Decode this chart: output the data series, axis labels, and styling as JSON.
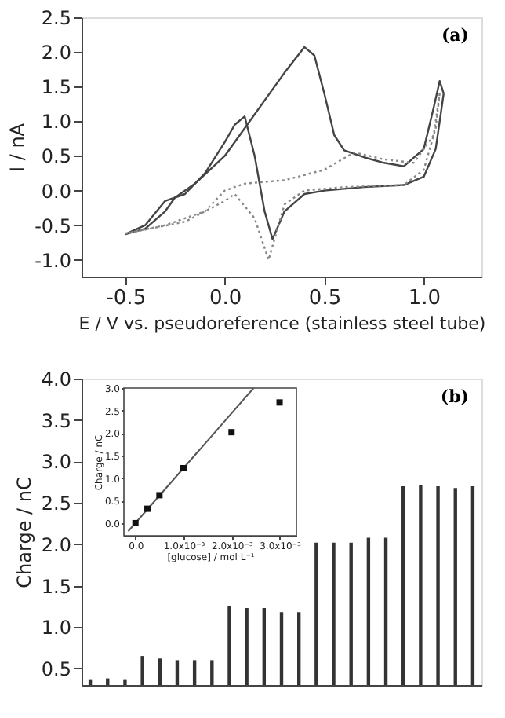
{
  "chart_data": [
    {
      "type": "line",
      "xlabel": "E / V vs. pseudoreference (stainless steel tube)",
      "ylabel": "I / nA",
      "annotations": [
        "(a)"
      ],
      "xlim": [
        -0.72,
        1.29
      ],
      "ylim": [
        -1.24,
        2.5
      ],
      "xticks": [
        -0.5,
        {
          "value": 0,
          "label": "0.0"
        },
        0.5,
        {
          "value": 1,
          "label": "1.0"
        }
      ],
      "yticks": [
        {
          "value": -1,
          "label": "-1.0"
        },
        -0.5,
        {
          "value": 0,
          "label": "0.0"
        },
        0.5,
        {
          "value": 1,
          "label": "1.0"
        },
        1.5,
        {
          "value": 2,
          "label": "2.0"
        },
        2.5
      ],
      "series": [
        {
          "color": "#444444",
          "line_style": "solid",
          "x": [
            -0.5,
            -0.4,
            -0.3,
            -0.25,
            -0.15,
            0,
            0.1,
            0.2,
            0.3,
            0.4,
            0.45,
            0.5,
            0.55,
            0.6,
            0.7,
            0.8,
            0.9,
            1.0,
            1.05,
            1.08,
            1.1
          ],
          "values": [
            -0.63,
            -0.55,
            -0.3,
            -0.1,
            0.1,
            0.5,
            0.9,
            1.3,
            1.7,
            2.07,
            1.95,
            1.4,
            0.8,
            0.58,
            0.48,
            0.4,
            0.35,
            0.6,
            1.2,
            1.58,
            1.4
          ]
        },
        {
          "color": "#444444",
          "line_style": "solid",
          "x": [
            1.1,
            1.06,
            1.0,
            0.9,
            0.7,
            0.5,
            0.4,
            0.3,
            0.24,
            0.2,
            0.15,
            0.1,
            0.05,
            0,
            -0.1,
            -0.2,
            -0.3,
            -0.4,
            -0.5
          ],
          "values": [
            1.4,
            0.6,
            0.2,
            0.08,
            0.05,
            0,
            -0.05,
            -0.3,
            -0.7,
            -0.3,
            0.5,
            1.07,
            0.95,
            0.7,
            0.25,
            -0.05,
            -0.15,
            -0.5,
            -0.63
          ]
        },
        {
          "color": "#888888",
          "line_style": "dotted",
          "x": [
            -0.5,
            -0.3,
            -0.1,
            0,
            0.1,
            0.3,
            0.5,
            0.65,
            0.8,
            0.95,
            1.05,
            1.08
          ],
          "values": [
            -0.62,
            -0.5,
            -0.3,
            0,
            0.1,
            0.15,
            0.3,
            0.55,
            0.45,
            0.4,
            0.8,
            1.4
          ]
        },
        {
          "color": "#888888",
          "line_style": "dotted",
          "x": [
            1.08,
            1.06,
            1.0,
            0.9,
            0.6,
            0.4,
            0.3,
            0.22,
            0.15,
            0.05,
            0,
            -0.2,
            -0.5
          ],
          "values": [
            1.4,
            0.9,
            0.3,
            0.08,
            0.05,
            0,
            -0.2,
            -1.0,
            -0.4,
            -0.05,
            -0.15,
            -0.45,
            -0.62
          ]
        }
      ]
    },
    {
      "type": "bar",
      "ylabel": "Charge / nC",
      "annotations": [
        "(b)"
      ],
      "tick_labels": "y",
      "color": "#333333",
      "ylim": [
        0.3,
        4.0
      ],
      "yticks": [
        0.5,
        {
          "value": 1,
          "label": "1.0"
        },
        1.5,
        {
          "value": 2,
          "label": "2.0"
        },
        2.5,
        {
          "value": 3,
          "label": "3.0"
        },
        3.5,
        {
          "value": 4,
          "label": "4.0"
        }
      ],
      "categories": [
        null,
        null,
        null,
        null,
        null,
        null,
        null,
        null,
        null,
        null,
        null,
        null,
        null,
        null,
        null,
        null,
        null,
        null,
        null,
        null,
        null,
        null,
        null
      ],
      "values": [
        0.37,
        0.38,
        0.37,
        0.65,
        0.62,
        0.6,
        0.6,
        0.6,
        1.25,
        1.23,
        1.23,
        1.18,
        1.18,
        2.02,
        2.02,
        2.02,
        2.08,
        2.08,
        2.7,
        2.72,
        2.7,
        2.68,
        2.7
      ]
    },
    {
      "type": "scatter",
      "xlabel": "[glucose] / mol L⁻¹",
      "ylabel": "Charge / nC",
      "xlim": [
        -0.00024,
        0.00335
      ],
      "ylim": [
        -0.28,
        3.0
      ],
      "xticks": [
        {
          "value": 0,
          "label": "0.0"
        },
        {
          "value": 0.001,
          "label": "1.0x10⁻³"
        },
        {
          "value": 0.002,
          "label": "2.0x10⁻³"
        },
        {
          "value": 0.003,
          "label": "3.0x10⁻³"
        }
      ],
      "yticks": [
        {
          "value": 0,
          "label": "0.0"
        },
        0.5,
        {
          "value": 1,
          "label": "1.0"
        },
        1.5,
        {
          "value": 2,
          "label": "2.0"
        },
        2.5,
        {
          "value": 3,
          "label": "3.0"
        }
      ],
      "series": [
        {
          "type": "scatter",
          "marker": "square",
          "color": "#111111",
          "x": [
            0,
            0.00025,
            0.0005,
            0.001,
            0.002,
            0.003
          ],
          "values": [
            0,
            0.32,
            0.62,
            1.22,
            2.02,
            2.68
          ]
        },
        {
          "type": "line",
          "color": "#555555",
          "x": [
            -0.00015,
            0.00246
          ],
          "values": [
            -0.18,
            3.0
          ]
        }
      ]
    }
  ]
}
